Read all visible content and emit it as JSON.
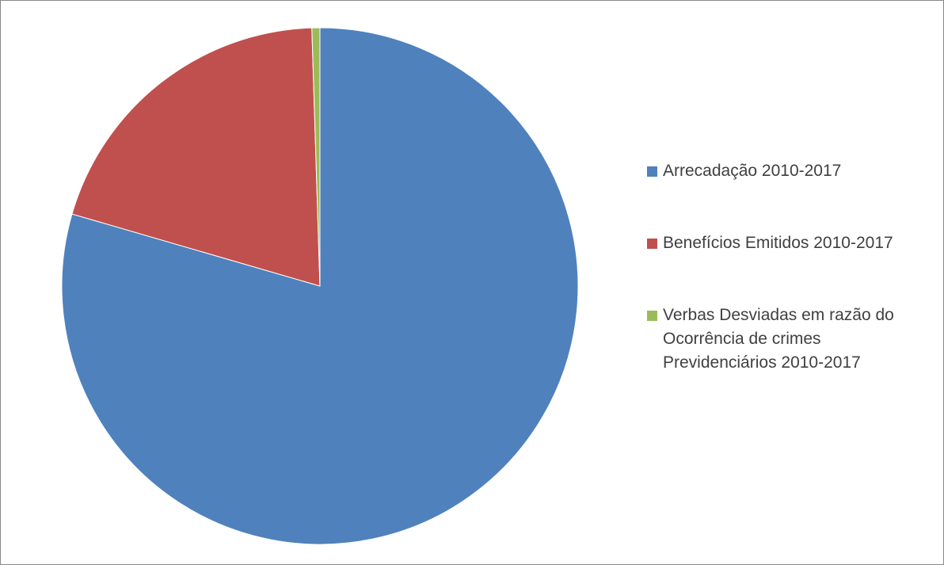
{
  "chart_data": {
    "type": "pie",
    "title": "",
    "start_angle_deg": 0,
    "direction": "clockwise",
    "legend_position": "right",
    "slices": [
      {
        "name": "Arrecadação 2010-2017",
        "value": 79.5,
        "color": "#4F81BD"
      },
      {
        "name": "Benefícios Emitidos 2010-2017",
        "value": 20.0,
        "color": "#C0504D"
      },
      {
        "name": "Verbas Desviadas em razão do Ocorrência de crimes Previdenciários 2010-2017",
        "value": 0.5,
        "color": "#9BBB59"
      }
    ]
  },
  "legend": {
    "items": [
      {
        "lines": [
          "Arrecadação 2010-2017"
        ],
        "color": "#4F81BD"
      },
      {
        "lines": [
          "Benefícios Emitidos 2010-2017"
        ],
        "color": "#C0504D"
      },
      {
        "lines": [
          "Verbas Desviadas em razão do",
          "Ocorrência de crimes",
          "Previdenciários 2010-2017"
        ],
        "color": "#9BBB59"
      }
    ]
  }
}
